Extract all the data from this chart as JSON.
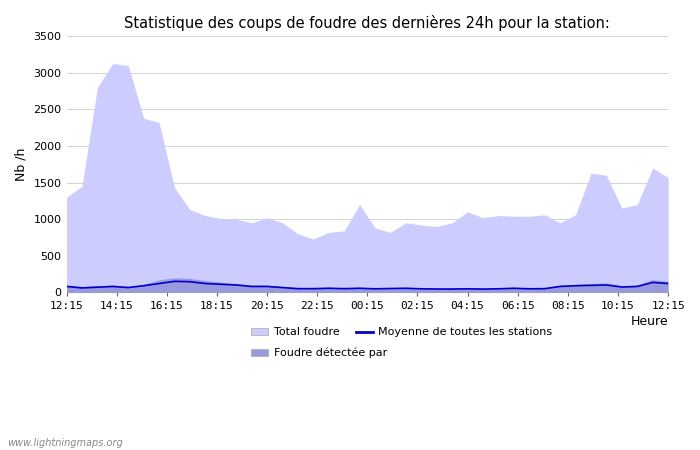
{
  "title": "Statistique des coups de foudre des dernières 24h pour la station:",
  "xlabel": "Heure",
  "ylabel": "Nb /h",
  "ylim": [
    0,
    3500
  ],
  "yticks": [
    0,
    500,
    1000,
    1500,
    2000,
    2500,
    3000,
    3500
  ],
  "xtick_labels": [
    "12:15",
    "14:15",
    "16:15",
    "18:15",
    "20:15",
    "22:15",
    "00:15",
    "02:15",
    "04:15",
    "06:15",
    "08:15",
    "10:15",
    "12:15"
  ],
  "color_total": "#ccccff",
  "color_detected": "#9999dd",
  "color_mean": "#0000cc",
  "watermark": "www.lightningmaps.org",
  "legend_total": "Total foudre",
  "legend_detected": "Foudre détectée par",
  "legend_mean": "Moyenne de toutes les stations",
  "total_foudre": [
    1300,
    1450,
    2800,
    3130,
    3100,
    2380,
    2320,
    1430,
    1130,
    1050,
    1010,
    1000,
    950,
    1020,
    950,
    800,
    730,
    820,
    840,
    1200,
    880,
    820,
    950,
    920,
    900,
    950,
    1100,
    1020,
    1050,
    1040,
    1040,
    1060,
    950,
    1060,
    1630,
    1600,
    1150,
    1200,
    1700,
    1570
  ],
  "foudre_detectee": [
    100,
    80,
    90,
    100,
    80,
    110,
    170,
    200,
    190,
    160,
    140,
    120,
    100,
    100,
    80,
    60,
    60,
    70,
    60,
    70,
    60,
    65,
    70,
    60,
    55,
    55,
    60,
    55,
    60,
    70,
    60,
    65,
    100,
    110,
    120,
    130,
    90,
    100,
    175,
    150
  ],
  "moyenne": [
    80,
    60,
    70,
    80,
    65,
    90,
    120,
    150,
    145,
    120,
    110,
    100,
    80,
    80,
    65,
    50,
    50,
    55,
    50,
    55,
    48,
    52,
    55,
    48,
    45,
    45,
    48,
    44,
    48,
    55,
    48,
    50,
    80,
    90,
    95,
    100,
    72,
    80,
    135,
    120
  ]
}
